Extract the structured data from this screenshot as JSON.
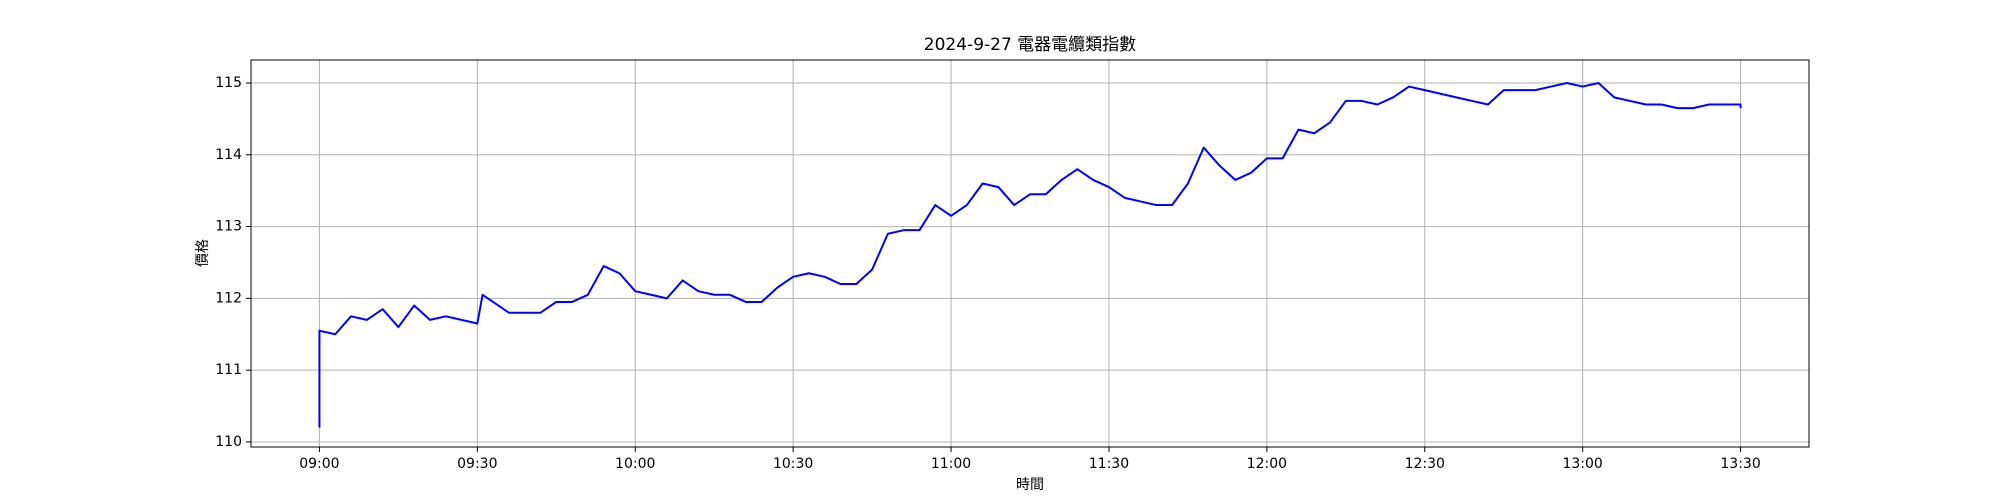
{
  "chart_data": {
    "type": "line",
    "title": "2024-9-27 電器電纜類指數",
    "xlabel": "時間",
    "ylabel": "價格",
    "x": [
      "09:00",
      "09:00",
      "09:03",
      "09:06",
      "09:09",
      "09:12",
      "09:15",
      "09:18",
      "09:21",
      "09:24",
      "09:27",
      "09:30",
      "09:31",
      "09:33",
      "09:36",
      "09:39",
      "09:42",
      "09:45",
      "09:48",
      "09:51",
      "09:54",
      "09:57",
      "10:00",
      "10:03",
      "10:06",
      "10:09",
      "10:12",
      "10:15",
      "10:18",
      "10:21",
      "10:24",
      "10:27",
      "10:30",
      "10:33",
      "10:36",
      "10:39",
      "10:42",
      "10:45",
      "10:48",
      "10:51",
      "10:54",
      "10:57",
      "11:00",
      "11:03",
      "11:06",
      "11:09",
      "11:12",
      "11:15",
      "11:18",
      "11:21",
      "11:24",
      "11:27",
      "11:30",
      "11:33",
      "11:36",
      "11:39",
      "11:42",
      "11:45",
      "11:48",
      "11:51",
      "11:54",
      "11:57",
      "12:00",
      "12:03",
      "12:06",
      "12:09",
      "12:12",
      "12:15",
      "12:18",
      "12:21",
      "12:24",
      "12:27",
      "12:30",
      "12:33",
      "12:36",
      "12:39",
      "12:42",
      "12:45",
      "12:48",
      "12:51",
      "12:54",
      "12:57",
      "13:00",
      "13:03",
      "13:06",
      "13:09",
      "13:12",
      "13:15",
      "13:18",
      "13:21",
      "13:24",
      "13:27",
      "13:30",
      "13:30"
    ],
    "series": [
      {
        "color": "#0000ff",
        "values": [
          110.2,
          111.55,
          111.5,
          111.75,
          111.7,
          111.85,
          111.6,
          111.9,
          111.7,
          111.75,
          111.7,
          111.65,
          112.05,
          111.95,
          111.8,
          111.8,
          111.8,
          111.95,
          111.95,
          112.05,
          112.45,
          112.35,
          112.1,
          112.05,
          112.0,
          112.25,
          112.1,
          112.05,
          112.05,
          111.95,
          111.95,
          112.15,
          112.3,
          112.35,
          112.3,
          112.2,
          112.2,
          112.4,
          112.9,
          112.95,
          112.95,
          113.3,
          113.15,
          113.3,
          113.6,
          113.55,
          113.3,
          113.45,
          113.45,
          113.65,
          113.8,
          113.65,
          113.55,
          113.4,
          113.35,
          113.3,
          113.3,
          113.6,
          114.1,
          113.85,
          113.65,
          113.75,
          113.95,
          113.95,
          114.35,
          114.3,
          114.45,
          114.75,
          114.75,
          114.7,
          114.8,
          114.95,
          114.9,
          114.85,
          114.8,
          114.75,
          114.7,
          114.9,
          114.9,
          114.9,
          114.95,
          115.0,
          114.95,
          115.0,
          114.8,
          114.75,
          114.7,
          114.7,
          114.65,
          114.65,
          114.7,
          114.7,
          114.7,
          114.65
        ]
      }
    ],
    "xlim": [
      "08:47",
      "13:43"
    ],
    "xticks": [
      "09:00",
      "09:30",
      "10:00",
      "10:30",
      "11:00",
      "11:30",
      "12:00",
      "12:30",
      "13:00",
      "13:30"
    ],
    "ylim": [
      109.93,
      115.32
    ],
    "yticks": [
      110,
      111,
      112,
      113,
      114,
      115
    ],
    "grid": true
  }
}
